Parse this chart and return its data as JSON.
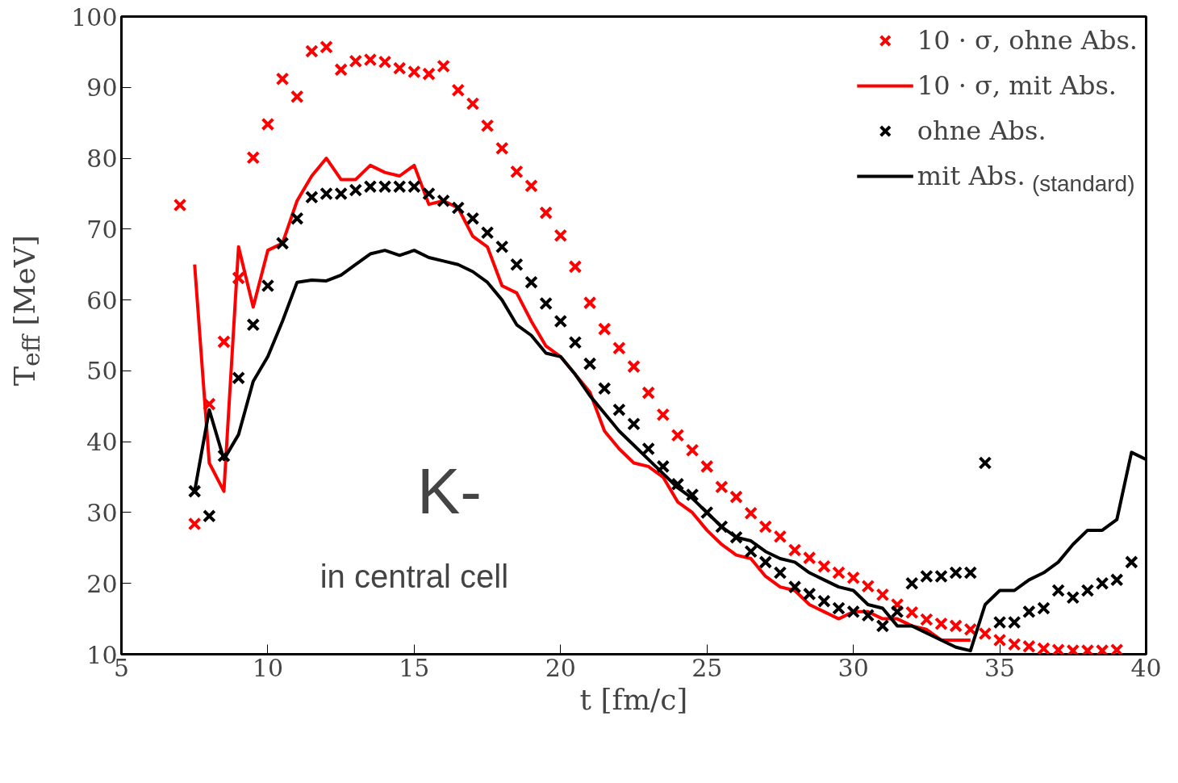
{
  "chart_data": {
    "type": "scatter",
    "xlabel": "t [fm/c]",
    "ylabel": "T$_{eff}$ [MeV]",
    "xlim": [
      5,
      40
    ],
    "ylim": [
      10,
      100
    ],
    "xticks": [
      5,
      10,
      15,
      20,
      25,
      30,
      35,
      40
    ],
    "yticks": [
      10,
      20,
      30,
      40,
      50,
      60,
      70,
      80,
      90,
      100
    ],
    "grid": false,
    "legend": "top right",
    "marker": "cross",
    "annotations": [
      "K-",
      "in central cell",
      "(standard)"
    ],
    "series": [
      {
        "name": "10 · σ, ohne Abs.",
        "color": "#ff0000",
        "x": [
          7,
          7.5,
          8,
          8.5,
          9,
          9.5,
          10,
          10.5,
          11,
          11.5,
          12,
          12.5,
          13,
          13.5,
          14,
          14.5,
          15,
          15.5,
          16,
          16.5,
          17,
          17.5,
          18,
          18.5,
          19,
          19.5,
          20,
          20.5,
          21,
          21.5,
          22,
          22.5,
          23,
          23.5,
          24,
          24.5,
          25,
          25.5,
          26,
          26.5,
          27,
          27.5,
          28,
          28.5,
          29,
          29.5,
          30,
          30.5,
          31,
          31.5,
          32,
          32.5,
          33,
          33.5,
          34,
          34.5,
          35,
          35.5,
          36,
          36.5,
          37,
          37.5,
          38,
          38.5,
          39
        ],
        "values": [
          73.4,
          28.4,
          45.3,
          54.1,
          63.1,
          80.1,
          84.8,
          91.2,
          88.7,
          95.1,
          95.7,
          92.5,
          93.7,
          93.9,
          93.6,
          92.7,
          92.2,
          91.9,
          93,
          89.6,
          87.7,
          84.6,
          81.4,
          78.1,
          76.1,
          72.3,
          69.1,
          64.7,
          59.6,
          55.9,
          53.2,
          50.6,
          46.9,
          43.8,
          40.9,
          38.8,
          36.5,
          33.6,
          32.2,
          29.9,
          28,
          26.6,
          24.7,
          23.6,
          22.4,
          21.5,
          20.8,
          19.6,
          18.4,
          17,
          15.9,
          14.9,
          14.3,
          14,
          13.5,
          12.9,
          12,
          11.4,
          11.1,
          10.8,
          10.6,
          10.5,
          10.5,
          10.5,
          10.6
        ]
      },
      {
        "name": "10 · σ, mit Abs.",
        "type": "line",
        "marker": "none",
        "color": "#ff0000",
        "x": [
          7.5,
          8,
          8.5,
          9,
          9.5,
          10,
          10.5,
          11,
          11.5,
          12,
          12.5,
          13,
          13.5,
          14,
          14.5,
          15,
          15.5,
          16,
          16.5,
          17,
          17.5,
          18,
          18.5,
          19,
          19.5,
          20,
          20.5,
          21,
          21.5,
          22,
          22.5,
          23,
          23.5,
          24,
          24.5,
          25,
          25.5,
          26,
          26.5,
          27,
          27.5,
          28,
          28.5,
          29,
          29.5,
          30,
          30.5,
          31,
          31.5,
          32,
          32.5,
          33,
          33.5,
          34
        ],
        "values": [
          65,
          37,
          33,
          67.5,
          59,
          67,
          68,
          74,
          77.5,
          80,
          77,
          77,
          79,
          78,
          77.5,
          79,
          73.5,
          74,
          73,
          69,
          67.5,
          62,
          61,
          57,
          53.5,
          52,
          49.5,
          47,
          41.5,
          39,
          37,
          36.5,
          35,
          31.5,
          30,
          27.5,
          25.5,
          24,
          23.5,
          21,
          19.5,
          19,
          17,
          16,
          15,
          16,
          16,
          15,
          15,
          14,
          13.5,
          12,
          12,
          12
        ]
      },
      {
        "name": "ohne Abs.",
        "color": "#000000",
        "x": [
          7.5,
          8,
          8.5,
          9,
          9.5,
          10,
          10.5,
          11,
          11.5,
          12,
          12.5,
          13,
          13.5,
          14,
          14.5,
          15,
          15.5,
          16,
          16.5,
          17,
          17.5,
          18,
          18.5,
          19,
          19.5,
          20,
          20.5,
          21,
          21.5,
          22,
          22.5,
          23,
          23.5,
          24,
          24.5,
          25,
          25.5,
          26,
          26.5,
          27,
          27.5,
          28,
          28.5,
          29,
          29.5,
          30,
          30.5,
          31,
          31.5,
          32,
          32.5,
          33,
          33.5,
          34,
          34.5,
          35,
          35.5,
          36,
          36.5,
          37,
          37.5,
          38,
          38.5,
          39,
          39.5
        ],
        "values": [
          33,
          29.5,
          38,
          49,
          56.5,
          62,
          68,
          71.5,
          74.5,
          75,
          75,
          75.5,
          76,
          76,
          76,
          76,
          75,
          74,
          73,
          71.5,
          69.5,
          67.5,
          65,
          62.5,
          59.5,
          57,
          54,
          51,
          47.5,
          44.5,
          42.5,
          39,
          36.5,
          34,
          32.5,
          30,
          28,
          26.5,
          24.5,
          23,
          21.5,
          19.5,
          18.5,
          17.5,
          16.5,
          16,
          15.5,
          14,
          16,
          20,
          21,
          21,
          21.5,
          21.5,
          37,
          14.5,
          14.5,
          16,
          16.5,
          19,
          18,
          19,
          20,
          20.5,
          23
        ]
      },
      {
        "name": "mit Abs.",
        "type": "line",
        "marker": "none",
        "color": "#000000",
        "x": [
          7.5,
          8,
          8.5,
          9,
          9.5,
          10,
          10.5,
          11,
          11.5,
          12,
          12.5,
          13,
          13.5,
          14,
          14.5,
          15,
          15.5,
          16,
          16.5,
          17,
          17.5,
          18,
          18.5,
          19,
          19.5,
          20,
          20.5,
          21,
          21.5,
          22,
          22.5,
          23,
          23.5,
          24,
          24.5,
          25,
          25.5,
          26,
          26.5,
          27,
          27.5,
          28,
          28.5,
          29,
          29.5,
          30,
          30.5,
          31,
          31.5,
          32,
          32.5,
          33,
          33.5,
          34,
          34.5,
          35,
          35.5,
          36,
          36.5,
          37,
          37.5,
          38,
          38.5,
          39,
          39.5,
          40
        ],
        "values": [
          33,
          44.5,
          37.5,
          41,
          48.5,
          52,
          57,
          62.5,
          62.8,
          62.7,
          63.5,
          65,
          66.5,
          67,
          66.3,
          67,
          66,
          65.5,
          65,
          64,
          62.5,
          60,
          56.5,
          55,
          52.5,
          52,
          49.5,
          46.5,
          44,
          41.5,
          39.5,
          37.5,
          35.5,
          33.5,
          32,
          30,
          28,
          26.5,
          26,
          24.5,
          23.5,
          23,
          21.5,
          20.5,
          19.5,
          19,
          17,
          16.5,
          14,
          14,
          13,
          12,
          11,
          10.5,
          17,
          19,
          19,
          20.5,
          21.5,
          23,
          25.5,
          27.5,
          27.5,
          29,
          38.5,
          37.5
        ]
      }
    ]
  }
}
